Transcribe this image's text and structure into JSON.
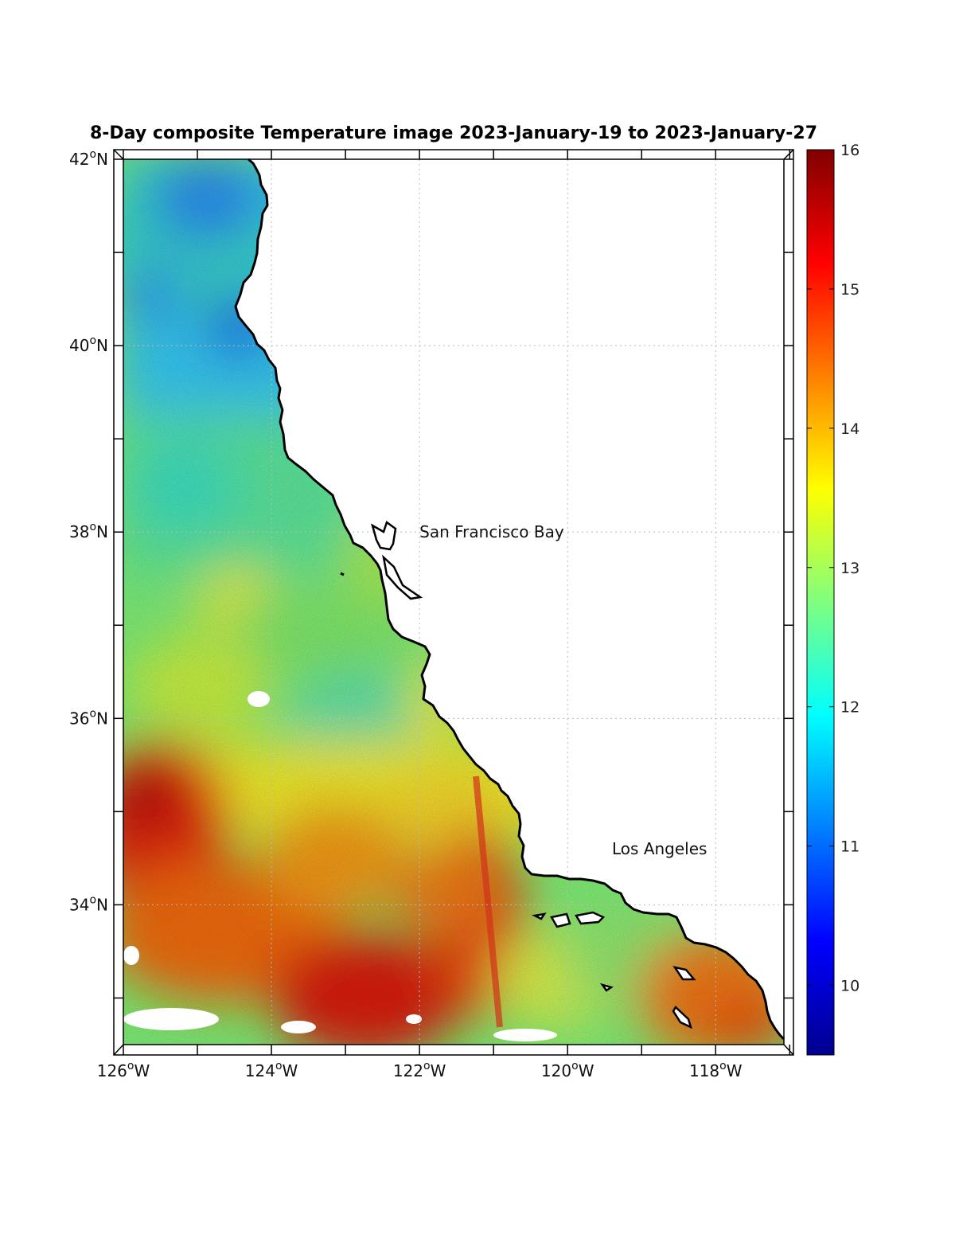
{
  "title": "8-Day composite Temperature image 2023-January-19 to 2023-January-27",
  "map": {
    "lon_range": [
      -126,
      -117.1
    ],
    "lat_range": [
      32.5,
      42
    ]
  },
  "axes": {
    "lat_ticks": [
      {
        "value": 42,
        "deg": "42",
        "unit": "N"
      },
      {
        "value": 40,
        "deg": "40",
        "unit": "N"
      },
      {
        "value": 38,
        "deg": "38",
        "unit": "N"
      },
      {
        "value": 36,
        "deg": "36",
        "unit": "N"
      },
      {
        "value": 34,
        "deg": "34",
        "unit": "N"
      }
    ],
    "lon_ticks": [
      {
        "value": -126,
        "deg": "126",
        "unit": "W"
      },
      {
        "value": -124,
        "deg": "124",
        "unit": "W"
      },
      {
        "value": -122,
        "deg": "122",
        "unit": "W"
      },
      {
        "value": -120,
        "deg": "120",
        "unit": "W"
      },
      {
        "value": -118,
        "deg": "118",
        "unit": "W"
      }
    ],
    "degree_symbol": "o"
  },
  "places": [
    {
      "name": "San Francisco Bay",
      "lon": -122.0,
      "lat": 38.0
    },
    {
      "name": "Los Angeles",
      "lon": -119.4,
      "lat": 34.6
    }
  ],
  "colorbar": {
    "range": [
      9.5,
      16
    ],
    "ticks": [
      "10",
      "11",
      "12",
      "13",
      "14",
      "15",
      "16"
    ],
    "colormap": "jet"
  }
}
